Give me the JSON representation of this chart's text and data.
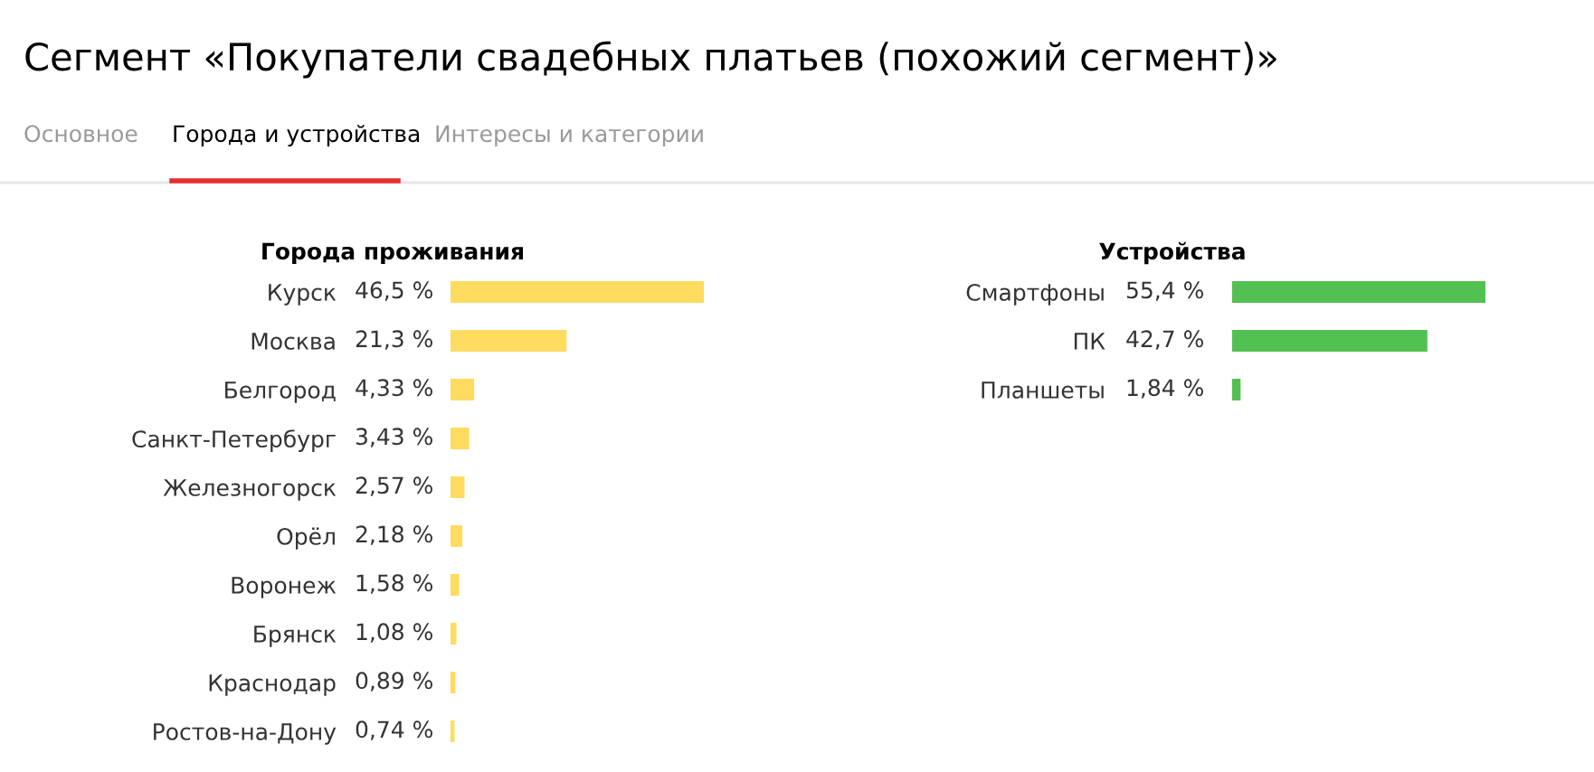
{
  "chart_data": [
    {
      "type": "bar",
      "orientation": "horizontal",
      "title": "Города проживания",
      "annotations": [
        "Сегмент «Покупатели свадебных платьев (похожий сегмент)»",
        "Основное",
        "Города и устройства",
        "Интересы и категории"
      ],
      "categories": [
        "Курск",
        "Москва",
        "Белгород",
        "Санкт-Петербург",
        "Железногорск",
        "Орёл",
        "Воронеж",
        "Брянск",
        "Краснодар",
        "Ростов-на-Дону"
      ],
      "values": [
        46.5,
        21.3,
        4.33,
        3.43,
        2.57,
        2.18,
        1.58,
        1.08,
        0.89,
        0.74
      ],
      "value_labels": [
        "46,5 %",
        "21,3 %",
        "4,33 %",
        "3,43 %",
        "2,57 %",
        "2,18 %",
        "1,58 %",
        "1,08 %",
        "0,89 %",
        "0,74 %"
      ],
      "color": "#ffdb60"
    },
    {
      "type": "bar",
      "orientation": "horizontal",
      "title": "Устройства",
      "categories": [
        "Смартфоны",
        "ПК",
        "Планшеты"
      ],
      "values": [
        55.4,
        42.7,
        1.84
      ],
      "value_labels": [
        "55,4 %",
        "42,7 %",
        "1,84 %"
      ],
      "color": "#52c152"
    }
  ]
}
